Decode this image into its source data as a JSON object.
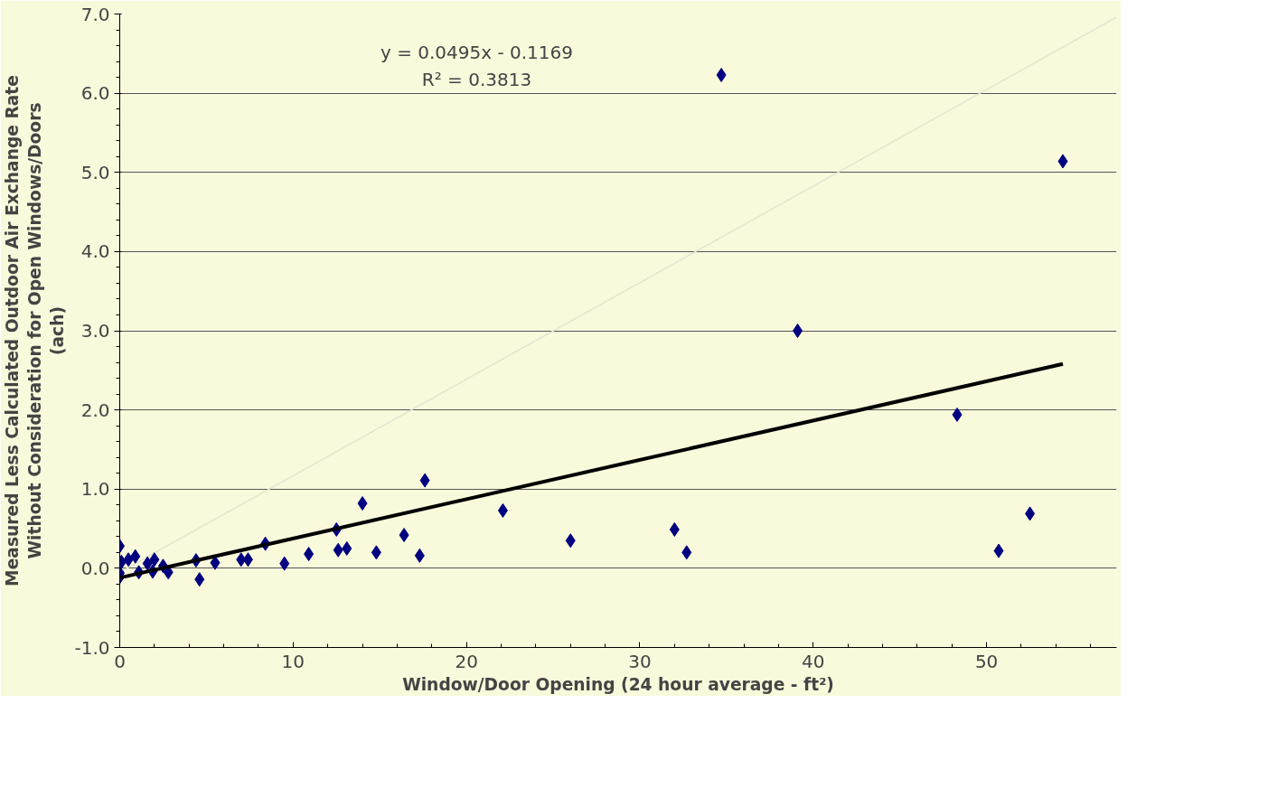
{
  "chart_data": {
    "type": "scatter",
    "xlabel": "Window/Door Opening (24 hour average - ft²)",
    "ylabel": "Measured Less Calculated Outdoor Air Exchange Rate\nWithout Consideration for Open Windows/Doors\n(ach)",
    "annotations": [
      "y = 0.0495x - 0.1169",
      "R² = 0.3813"
    ],
    "xlim": [
      0,
      57.5
    ],
    "ylim": [
      -1,
      7
    ],
    "xticks": [
      0,
      10,
      20,
      30,
      40,
      50
    ],
    "yticks": [
      {
        "value": -1,
        "label": "-1.0"
      },
      {
        "value": 0,
        "label": "0.0"
      },
      {
        "value": 1,
        "label": "1.0"
      },
      {
        "value": 2,
        "label": "2.0"
      },
      {
        "value": 3,
        "label": "3.0"
      },
      {
        "value": 4,
        "label": "4.0"
      },
      {
        "value": 5,
        "label": "5.0"
      },
      {
        "value": 6,
        "label": "6.0"
      },
      {
        "value": 7,
        "label": "7.0"
      }
    ],
    "grid": "y",
    "marker": "diamond",
    "series": [
      {
        "type": "line",
        "marker": "none",
        "color": "#e6e3cf",
        "x": [
          0,
          57.5
        ],
        "values": [
          -0.05,
          6.96
        ]
      },
      {
        "color": "#000080",
        "x": [
          0,
          0,
          0,
          0.1,
          0.5,
          0.9,
          1.1,
          1.6,
          1.9,
          2.0,
          2.5,
          2.8,
          4.4,
          4.6,
          5.5,
          7.0,
          7.4,
          8.4,
          9.5,
          10.9,
          12.5,
          12.6,
          13.1,
          14.0,
          14.8,
          16.4,
          17.3,
          17.6,
          22.1,
          26.0,
          32.0,
          32.7,
          34.7,
          39.1,
          48.3,
          50.7,
          52.5,
          54.4
        ],
        "values": [
          0.28,
          -0.06,
          -0.11,
          0.08,
          0.11,
          0.15,
          -0.05,
          0.06,
          -0.04,
          0.11,
          0.03,
          -0.05,
          0.1,
          -0.14,
          0.07,
          0.11,
          0.11,
          0.31,
          0.06,
          0.18,
          0.49,
          0.23,
          0.25,
          0.82,
          0.2,
          0.42,
          0.16,
          1.11,
          0.73,
          0.35,
          0.49,
          0.2,
          6.23,
          3.0,
          1.94,
          0.22,
          0.69,
          5.14
        ]
      },
      {
        "type": "line",
        "marker": "none",
        "color": "#000000",
        "x": [
          0,
          54.4
        ],
        "values": [
          -0.12,
          2.58
        ]
      }
    ]
  }
}
